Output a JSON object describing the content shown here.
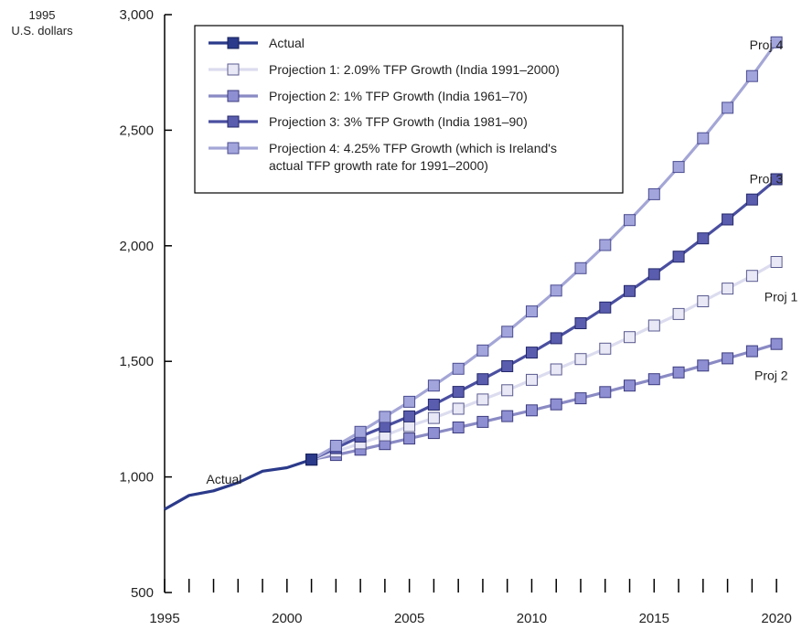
{
  "chart_data": {
    "type": "line",
    "title": "",
    "xlabel": "",
    "ylabel": "1995 U.S. dollars",
    "ylabel_lines": [
      "1995",
      "U.S. dollars"
    ],
    "xlim": [
      1995,
      2020.5
    ],
    "ylim": [
      500,
      3000
    ],
    "xticks": [
      1995,
      2000,
      2005,
      2010,
      2015,
      2020
    ],
    "yticks": [
      500,
      1000,
      1500,
      2000,
      2500,
      3000
    ],
    "ytick_labels": [
      "500",
      "1,000",
      "1,500",
      "2,000",
      "2,500",
      "3,000"
    ],
    "grid": false,
    "legend_position": "top-left",
    "series": [
      {
        "name": "Actual",
        "legend": "Actual",
        "color": "#2b3a8a",
        "marker_fill": "#2b3a8a",
        "marker_stroke": "#15205a",
        "x": [
          1995,
          1996,
          1997,
          1998,
          1999,
          2000,
          2001
        ],
        "y": [
          860,
          920,
          940,
          975,
          1025,
          1040,
          1075
        ],
        "markers_from_index": 6
      },
      {
        "name": "Projection 1",
        "legend": "Projection 1: 2.09% TFP Growth (India 1991–2000)",
        "end_label": "Proj 1",
        "color": "#dcdcef",
        "marker_fill": "#e8e8f6",
        "marker_stroke": "#5a5a90",
        "x": [
          2001,
          2002,
          2003,
          2004,
          2005,
          2006,
          2007,
          2008,
          2009,
          2010,
          2011,
          2012,
          2013,
          2014,
          2015,
          2016,
          2017,
          2018,
          2019,
          2020
        ],
        "y": [
          1075,
          1110,
          1145,
          1180,
          1220,
          1255,
          1295,
          1335,
          1375,
          1420,
          1465,
          1510,
          1555,
          1605,
          1655,
          1705,
          1760,
          1815,
          1870,
          1930
        ]
      },
      {
        "name": "Projection 2",
        "legend": "Projection 2: 1% TFP Growth (India 1961–70)",
        "end_label": "Proj 2",
        "color": "#8a8ac4",
        "marker_fill": "#8e8ed2",
        "marker_stroke": "#3c3c80",
        "x": [
          2001,
          2002,
          2003,
          2004,
          2005,
          2006,
          2007,
          2008,
          2009,
          2010,
          2011,
          2012,
          2013,
          2014,
          2015,
          2016,
          2017,
          2018,
          2019,
          2020
        ],
        "y": [
          1075,
          1095,
          1118,
          1142,
          1166,
          1190,
          1214,
          1238,
          1263,
          1288,
          1314,
          1340,
          1367,
          1395,
          1423,
          1452,
          1482,
          1513,
          1544,
          1575
        ]
      },
      {
        "name": "Projection 3",
        "legend": "Projection 3: 3% TFP Growth (India 1981–90)",
        "end_label": "Proj 3",
        "color": "#4a4fa0",
        "marker_fill": "#5a5cae",
        "marker_stroke": "#24286a",
        "x": [
          2001,
          2002,
          2003,
          2004,
          2005,
          2006,
          2007,
          2008,
          2009,
          2010,
          2011,
          2012,
          2013,
          2014,
          2015,
          2016,
          2017,
          2018,
          2019,
          2020
        ],
        "y": [
          1075,
          1125,
          1175,
          1218,
          1262,
          1313,
          1368,
          1423,
          1479,
          1538,
          1600,
          1665,
          1733,
          1804,
          1877,
          1953,
          2032,
          2114,
          2200,
          2288
        ]
      },
      {
        "name": "Projection 4",
        "legend": "Projection 4: 4.25% TFP Growth (which is Ireland's actual TFP growth rate for 1991–2000)",
        "legend_lines": [
          "Projection 4: 4.25% TFP Growth (which is Ireland's",
          "actual TFP growth rate for 1991–2000)"
        ],
        "end_label": "Proj 4",
        "color": "#a4a6d6",
        "marker_fill": "#a2a4dc",
        "marker_stroke": "#4a4c90",
        "x": [
          2001,
          2002,
          2003,
          2004,
          2005,
          2006,
          2007,
          2008,
          2009,
          2010,
          2011,
          2012,
          2013,
          2014,
          2015,
          2016,
          2017,
          2018,
          2019,
          2020
        ],
        "y": [
          1075,
          1135,
          1195,
          1260,
          1325,
          1395,
          1468,
          1547,
          1628,
          1716,
          1806,
          1903,
          2003,
          2111,
          2223,
          2341,
          2465,
          2597,
          2734,
          2880
        ]
      }
    ],
    "annotations": [
      {
        "text": "Actual",
        "x": 1996.7,
        "y": 990,
        "anchor": "start"
      },
      {
        "text": "Proj 4",
        "x": 2018.9,
        "y": 2870,
        "anchor": "start"
      },
      {
        "text": "Proj 3",
        "x": 2018.9,
        "y": 2290,
        "anchor": "start"
      },
      {
        "text": "Proj 1",
        "x": 2019.5,
        "y": 1780,
        "anchor": "start"
      },
      {
        "text": "Proj 2",
        "x": 2019.1,
        "y": 1440,
        "anchor": "start"
      }
    ]
  }
}
